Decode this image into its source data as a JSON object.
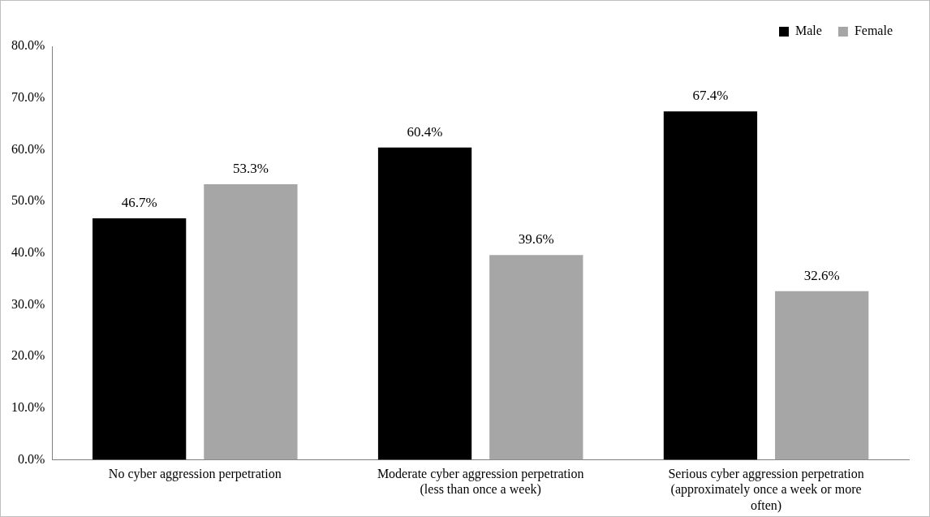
{
  "chart_data": {
    "type": "bar",
    "categories": [
      "No cyber aggression perpetration",
      "Moderate cyber aggression perpetration (less than once a week)",
      "Serious cyber aggression perpetration (approximately once a week or more often)"
    ],
    "series": [
      {
        "name": "Male",
        "color": "#000000",
        "values": [
          46.7,
          60.4,
          67.4
        ],
        "value_labels": [
          "46.7%",
          "60.4%",
          "67.4%"
        ]
      },
      {
        "name": "Female",
        "color": "#a6a6a6",
        "values": [
          53.3,
          39.6,
          32.6
        ],
        "value_labels": [
          "53.3%",
          "39.6%",
          "32.6%"
        ]
      }
    ],
    "ylim": [
      0,
      80
    ],
    "yticks": [
      {
        "value": 0,
        "label": "0.0%"
      },
      {
        "value": 10,
        "label": "10.0%"
      },
      {
        "value": 20,
        "label": "20.0%"
      },
      {
        "value": 30,
        "label": "30.0%"
      },
      {
        "value": 40,
        "label": "40.0%"
      },
      {
        "value": 50,
        "label": "50.0%"
      },
      {
        "value": 60,
        "label": "60.0%"
      },
      {
        "value": 70,
        "label": "70.0%"
      },
      {
        "value": 80,
        "label": "80.0%"
      }
    ],
    "grid": false,
    "legend": "top right"
  }
}
